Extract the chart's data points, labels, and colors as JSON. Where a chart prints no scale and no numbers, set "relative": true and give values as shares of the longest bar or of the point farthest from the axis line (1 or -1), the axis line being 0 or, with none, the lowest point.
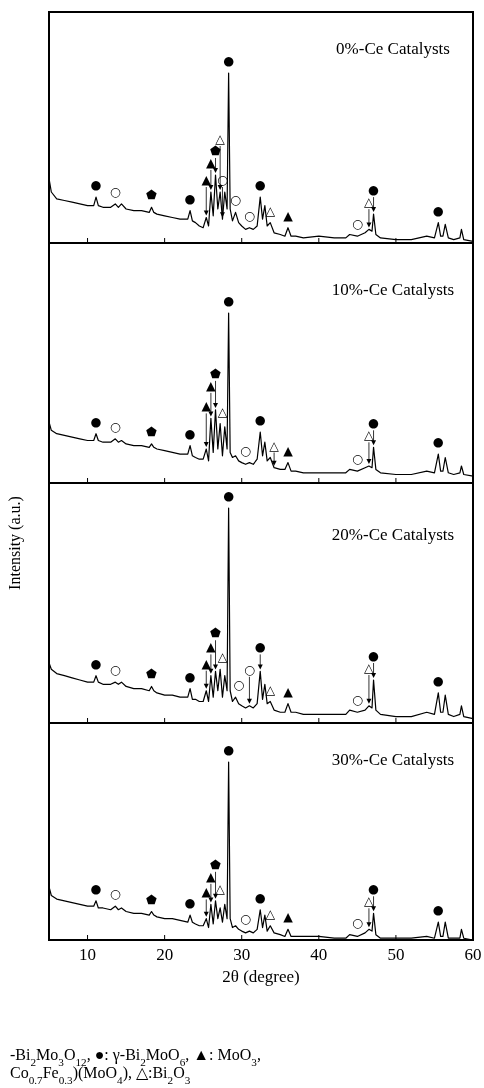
{
  "chart_data": [
    {
      "type": "line",
      "relative": true,
      "color": "#000000",
      "title": "0%-Ce Catalysts",
      "xlim": [
        5,
        60
      ],
      "xticks": [
        10,
        20,
        30,
        40,
        50,
        60
      ],
      "tick_labels": false,
      "x": [
        5,
        5.3,
        6,
        7,
        8,
        9,
        10,
        10.8,
        11.1,
        11.4,
        12,
        13,
        13.6,
        14,
        14.4,
        15,
        16,
        17,
        18,
        18.3,
        18.6,
        19,
        20,
        21,
        22,
        23,
        23.3,
        23.6,
        24,
        24.5,
        25,
        25.4,
        25.7,
        26,
        26.3,
        26.6,
        26.9,
        27.2,
        27.5,
        27.8,
        28.1,
        28.3,
        28.5,
        28.8,
        29.2,
        29.6,
        30,
        30.5,
        31,
        31.5,
        32,
        32.4,
        32.7,
        33,
        33.3,
        33.7,
        34.2,
        35,
        35.6,
        36,
        36.4,
        37,
        38,
        40,
        42,
        43.5,
        44,
        45,
        46,
        46.5,
        46.9,
        47.1,
        47.4,
        48,
        50,
        52,
        54,
        55,
        55.5,
        55.8,
        56.1,
        56.4,
        56.8,
        57.5,
        58.3,
        58.5,
        58.8,
        60
      ],
      "values": [
        0.38,
        0.3,
        0.26,
        0.25,
        0.24,
        0.23,
        0.22,
        0.22,
        0.27,
        0.22,
        0.21,
        0.21,
        0.23,
        0.21,
        0.23,
        0.2,
        0.19,
        0.19,
        0.18,
        0.21,
        0.18,
        0.17,
        0.16,
        0.15,
        0.14,
        0.14,
        0.19,
        0.13,
        0.12,
        0.1,
        0.09,
        0.15,
        0.1,
        0.3,
        0.16,
        0.4,
        0.2,
        0.3,
        0.14,
        0.3,
        0.2,
        1,
        0.2,
        0.13,
        0.18,
        0.12,
        0.1,
        0.08,
        0.09,
        0.08,
        0.1,
        0.27,
        0.14,
        0.22,
        0.1,
        0.12,
        0.06,
        0.05,
        0.04,
        0.09,
        0.04,
        0.04,
        0.03,
        0.04,
        0.03,
        0.03,
        0.05,
        0.04,
        0.06,
        0.08,
        0.07,
        0.17,
        0.05,
        0.03,
        0.02,
        0.02,
        0.04,
        0.03,
        0.12,
        0.04,
        0.04,
        0.11,
        0.03,
        0.02,
        0.03,
        0.08,
        0.02,
        0.01
      ],
      "annotations": [
        {
          "text": "●",
          "x": 11.1,
          "y": 0.27
        },
        {
          "text": "○",
          "x": 13.6,
          "y": 0.23
        },
        {
          "text": "⬟",
          "x": 18.3,
          "y": 0.21
        },
        {
          "text": "●",
          "x": 23.3,
          "y": 0.19
        },
        {
          "text": "▲",
          "x": 25.4,
          "y": 0.15
        },
        {
          "text": "▲",
          "x": 26,
          "y": 0.3
        },
        {
          "text": "⬟",
          "x": 26.6,
          "y": 0.4
        },
        {
          "text": "△",
          "x": 27.2,
          "y": 0.3
        },
        {
          "text": "○",
          "x": 27.5,
          "y": 0.14
        },
        {
          "text": "●",
          "x": 28.3,
          "y": 1
        },
        {
          "text": "○",
          "x": 29.2,
          "y": 0.18
        },
        {
          "text": "○",
          "x": 31,
          "y": 0.09
        },
        {
          "text": "●",
          "x": 32.4,
          "y": 0.27
        },
        {
          "text": "△",
          "x": 33.7,
          "y": 0.12
        },
        {
          "text": "▲",
          "x": 36,
          "y": 0.09
        },
        {
          "text": "○",
          "x": 45,
          "y": 0.04
        },
        {
          "text": "△",
          "x": 46.5,
          "y": 0.08
        },
        {
          "text": "●",
          "x": 47.1,
          "y": 0.17
        },
        {
          "text": "●",
          "x": 55.5,
          "y": 0.12
        }
      ]
    },
    {
      "type": "line",
      "relative": true,
      "color": "#000000",
      "title": "10%-Ce Catalysts",
      "xlim": [
        5,
        60
      ],
      "xticks": [
        10,
        20,
        30,
        40,
        50,
        60
      ],
      "tick_labels": false,
      "x": [
        5,
        5.3,
        6,
        7,
        8,
        9,
        10,
        10.8,
        11.1,
        11.4,
        12,
        13,
        13.6,
        14,
        14.4,
        15,
        16,
        17,
        18,
        18.3,
        18.6,
        19,
        20,
        21,
        22,
        23,
        23.3,
        23.6,
        24,
        24.5,
        25,
        25.4,
        25.7,
        26,
        26.3,
        26.6,
        26.9,
        27.2,
        27.5,
        27.8,
        28.1,
        28.3,
        28.5,
        28.8,
        29.2,
        29.6,
        30,
        30.5,
        31,
        31.5,
        32,
        32.4,
        32.7,
        33,
        33.3,
        33.7,
        34.2,
        35,
        35.6,
        36,
        36.4,
        37,
        38,
        40,
        42,
        43.5,
        44,
        45,
        46,
        46.5,
        46.9,
        47.1,
        47.4,
        48,
        50,
        52,
        54,
        55,
        55.5,
        55.8,
        56.1,
        56.4,
        56.8,
        57.5,
        58.3,
        58.5,
        58.8,
        60
      ],
      "values": [
        0.36,
        0.31,
        0.29,
        0.28,
        0.27,
        0.26,
        0.25,
        0.25,
        0.29,
        0.25,
        0.24,
        0.24,
        0.26,
        0.24,
        0.25,
        0.23,
        0.22,
        0.22,
        0.21,
        0.23,
        0.21,
        0.2,
        0.19,
        0.18,
        0.17,
        0.17,
        0.22,
        0.16,
        0.15,
        0.14,
        0.14,
        0.2,
        0.13,
        0.38,
        0.18,
        0.43,
        0.2,
        0.35,
        0.16,
        0.33,
        0.2,
        1,
        0.18,
        0.15,
        0.16,
        0.13,
        0.12,
        0.11,
        0.12,
        0.11,
        0.14,
        0.3,
        0.16,
        0.24,
        0.13,
        0.15,
        0.09,
        0.08,
        0.08,
        0.12,
        0.07,
        0.07,
        0.06,
        0.06,
        0.06,
        0.06,
        0.08,
        0.07,
        0.09,
        0.1,
        0.09,
        0.21,
        0.08,
        0.06,
        0.05,
        0.05,
        0.07,
        0.06,
        0.17,
        0.07,
        0.07,
        0.15,
        0.06,
        0.05,
        0.06,
        0.1,
        0.05,
        0.04
      ],
      "annotations": [
        {
          "text": "●",
          "x": 11.1,
          "y": 0.29
        },
        {
          "text": "○",
          "x": 13.6,
          "y": 0.26
        },
        {
          "text": "⬟",
          "x": 18.3,
          "y": 0.23
        },
        {
          "text": "●",
          "x": 23.3,
          "y": 0.22
        },
        {
          "text": "▲",
          "x": 25.4,
          "y": 0.2
        },
        {
          "text": "▲",
          "x": 26,
          "y": 0.38
        },
        {
          "text": "⬟",
          "x": 26.6,
          "y": 0.43
        },
        {
          "text": "△",
          "x": 27.5,
          "y": 0.33
        },
        {
          "text": "●",
          "x": 28.3,
          "y": 1
        },
        {
          "text": "○",
          "x": 30.5,
          "y": 0.11
        },
        {
          "text": "●",
          "x": 32.4,
          "y": 0.3
        },
        {
          "text": "△",
          "x": 34.2,
          "y": 0.09
        },
        {
          "text": "▲",
          "x": 36,
          "y": 0.12
        },
        {
          "text": "○",
          "x": 45,
          "y": 0.07
        },
        {
          "text": "△",
          "x": 46.5,
          "y": 0.1
        },
        {
          "text": "●",
          "x": 47.1,
          "y": 0.21
        },
        {
          "text": "●",
          "x": 55.5,
          "y": 0.17
        }
      ]
    },
    {
      "type": "line",
      "relative": true,
      "color": "#000000",
      "title": "20%-Ce Catalysts",
      "ylabel": "Intensity (a.u.)",
      "xlim": [
        5,
        60
      ],
      "xticks": [
        10,
        20,
        30,
        40,
        50,
        60
      ],
      "tick_labels": false,
      "x": [
        5,
        5.3,
        6,
        7,
        8,
        9,
        10,
        10.8,
        11.1,
        11.4,
        12,
        13,
        13.6,
        14,
        14.4,
        15,
        16,
        17,
        18,
        18.3,
        18.6,
        19,
        20,
        21,
        22,
        23,
        23.3,
        23.6,
        24,
        24.5,
        25,
        25.4,
        25.7,
        26,
        26.3,
        26.6,
        26.9,
        27.2,
        27.5,
        27.8,
        28.1,
        28.3,
        28.5,
        28.8,
        29.2,
        29.6,
        30,
        30.5,
        31,
        31.5,
        32,
        32.4,
        32.7,
        33,
        33.3,
        33.7,
        34.2,
        35,
        35.6,
        36,
        36.4,
        37,
        38,
        40,
        42,
        43.5,
        44,
        45,
        46,
        46.5,
        46.9,
        47.1,
        47.4,
        48,
        50,
        52,
        54,
        55,
        55.5,
        55.8,
        56.1,
        56.4,
        56.8,
        57.5,
        58.3,
        58.5,
        58.8,
        60
      ],
      "values": [
        0.28,
        0.25,
        0.23,
        0.22,
        0.21,
        0.2,
        0.19,
        0.19,
        0.22,
        0.19,
        0.18,
        0.18,
        0.19,
        0.18,
        0.19,
        0.17,
        0.16,
        0.16,
        0.15,
        0.17,
        0.15,
        0.14,
        0.13,
        0.13,
        0.12,
        0.12,
        0.16,
        0.11,
        0.11,
        0.1,
        0.1,
        0.15,
        0.1,
        0.22,
        0.12,
        0.24,
        0.15,
        0.25,
        0.12,
        0.22,
        0.15,
        1,
        0.15,
        0.1,
        0.12,
        0.09,
        0.08,
        0.07,
        0.08,
        0.07,
        0.09,
        0.24,
        0.11,
        0.18,
        0.09,
        0.1,
        0.06,
        0.05,
        0.05,
        0.09,
        0.05,
        0.05,
        0.04,
        0.04,
        0.04,
        0.04,
        0.06,
        0.05,
        0.06,
        0.08,
        0.07,
        0.2,
        0.06,
        0.04,
        0.03,
        0.03,
        0.05,
        0.04,
        0.14,
        0.05,
        0.05,
        0.13,
        0.04,
        0.03,
        0.04,
        0.08,
        0.03,
        0.02
      ],
      "annotations": [
        {
          "text": "●",
          "x": 11.1,
          "y": 0.22
        },
        {
          "text": "○",
          "x": 13.6,
          "y": 0.19
        },
        {
          "text": "⬟",
          "x": 18.3,
          "y": 0.17
        },
        {
          "text": "●",
          "x": 23.3,
          "y": 0.16
        },
        {
          "text": "▲",
          "x": 25.4,
          "y": 0.15
        },
        {
          "text": "▲",
          "x": 26,
          "y": 0.22
        },
        {
          "text": "⬟",
          "x": 26.6,
          "y": 0.24
        },
        {
          "text": "△",
          "x": 27.5,
          "y": 0.25
        },
        {
          "text": "●",
          "x": 28.3,
          "y": 1
        },
        {
          "text": "○",
          "x": 29.6,
          "y": 0.09
        },
        {
          "text": "○",
          "x": 31,
          "y": 0.08
        },
        {
          "text": "●",
          "x": 32.4,
          "y": 0.24
        },
        {
          "text": "△",
          "x": 33.7,
          "y": 0.1
        },
        {
          "text": "▲",
          "x": 36,
          "y": 0.09
        },
        {
          "text": "○",
          "x": 45,
          "y": 0.05
        },
        {
          "text": "△",
          "x": 46.5,
          "y": 0.08
        },
        {
          "text": "●",
          "x": 47.1,
          "y": 0.2
        },
        {
          "text": "●",
          "x": 55.5,
          "y": 0.14
        }
      ]
    },
    {
      "type": "line",
      "relative": true,
      "color": "#000000",
      "title": "30%-Ce Catalysts",
      "xlabel": "2θ (degree)",
      "xlim": [
        5,
        60
      ],
      "xticks": [
        10,
        20,
        30,
        40,
        50,
        60
      ],
      "tick_labels": "x",
      "x": [
        5,
        5.3,
        6,
        7,
        8,
        9,
        10,
        10.8,
        11.1,
        11.4,
        12,
        13,
        13.6,
        14,
        14.4,
        15,
        16,
        17,
        18,
        18.3,
        18.6,
        19,
        20,
        21,
        22,
        23,
        23.3,
        23.6,
        24,
        24.5,
        25,
        25.4,
        25.7,
        26,
        26.3,
        26.6,
        26.9,
        27.2,
        27.5,
        27.8,
        28.1,
        28.3,
        28.5,
        28.8,
        29.2,
        29.6,
        30,
        30.5,
        31,
        31.5,
        32,
        32.4,
        32.7,
        33,
        33.3,
        33.7,
        34.2,
        35,
        35.6,
        36,
        36.4,
        37,
        38,
        40,
        42,
        43.5,
        44,
        45,
        46,
        46.5,
        46.9,
        47.1,
        47.4,
        48,
        50,
        52,
        54,
        55,
        55.5,
        55.8,
        56.1,
        56.4,
        56.8,
        57.5,
        58.3,
        58.5,
        58.8,
        60
      ],
      "values": [
        0.3,
        0.25,
        0.23,
        0.22,
        0.21,
        0.2,
        0.19,
        0.19,
        0.22,
        0.18,
        0.18,
        0.17,
        0.19,
        0.17,
        0.18,
        0.16,
        0.15,
        0.15,
        0.14,
        0.16,
        0.14,
        0.13,
        0.12,
        0.12,
        0.11,
        0.1,
        0.14,
        0.1,
        0.09,
        0.08,
        0.08,
        0.12,
        0.07,
        0.2,
        0.09,
        0.22,
        0.12,
        0.18,
        0.1,
        0.2,
        0.12,
        1,
        0.12,
        0.07,
        0.08,
        0.06,
        0.05,
        0.04,
        0.05,
        0.04,
        0.06,
        0.17,
        0.07,
        0.14,
        0.05,
        0.08,
        0.04,
        0.03,
        0.02,
        0.06,
        0.02,
        0.02,
        0.02,
        0.02,
        0.01,
        0.01,
        0.03,
        0.02,
        0.04,
        0.06,
        0.05,
        0.15,
        0.03,
        0.01,
        0.01,
        0.01,
        0.02,
        0.01,
        0.1,
        0.02,
        0.02,
        0.1,
        0.01,
        0.01,
        0.01,
        0.06,
        0.01,
        0
      ],
      "annotations": [
        {
          "text": "●",
          "x": 11.1,
          "y": 0.22
        },
        {
          "text": "○",
          "x": 13.6,
          "y": 0.19
        },
        {
          "text": "⬟",
          "x": 18.3,
          "y": 0.16
        },
        {
          "text": "●",
          "x": 23.3,
          "y": 0.14
        },
        {
          "text": "▲",
          "x": 25.4,
          "y": 0.12
        },
        {
          "text": "▲",
          "x": 26,
          "y": 0.2
        },
        {
          "text": "⬟",
          "x": 26.6,
          "y": 0.22
        },
        {
          "text": "△",
          "x": 27.2,
          "y": 0.18
        },
        {
          "text": "●",
          "x": 28.3,
          "y": 1
        },
        {
          "text": "○",
          "x": 30.5,
          "y": 0.04
        },
        {
          "text": "●",
          "x": 32.4,
          "y": 0.17
        },
        {
          "text": "△",
          "x": 33.7,
          "y": 0.08
        },
        {
          "text": "▲",
          "x": 36,
          "y": 0.06
        },
        {
          "text": "○",
          "x": 45,
          "y": 0.03
        },
        {
          "text": "△",
          "x": 46.5,
          "y": 0.06
        },
        {
          "text": "●",
          "x": 47.1,
          "y": 0.15
        },
        {
          "text": "●",
          "x": 55.5,
          "y": 0.1
        },
        "-Bi$_{2}$Mo$_{3}$O$_{12}$, ●: γ-Bi$_{2}$MoO$_{6}$, ▲: MoO$_{3}$,",
        "Co$_{0.7}$Fe$_{0.3}$)(MoO$_{4}$), △:Bi$_{2}$O$_{3}$"
      ]
    }
  ]
}
